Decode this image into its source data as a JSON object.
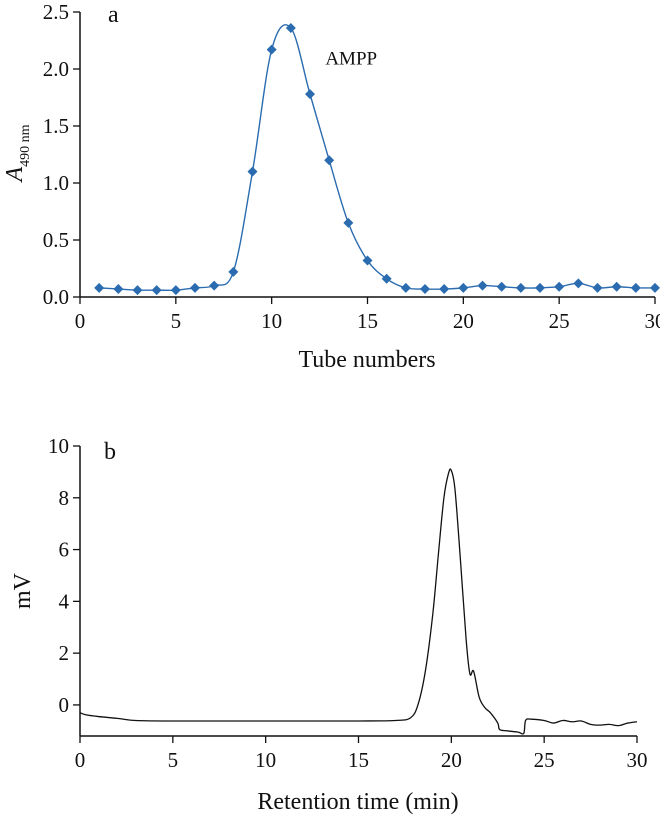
{
  "chart_data": [
    {
      "panel": "a",
      "type": "line",
      "xlabel": "Tube numbers",
      "ylabel_main": "A",
      "ylabel_sub": "490 nm",
      "xlim": [
        0,
        30
      ],
      "ylim": [
        0,
        2.5
      ],
      "xticks": [
        0,
        5,
        10,
        15,
        20,
        25,
        30
      ],
      "yticks": [
        "0.0",
        "0.5",
        "1.0",
        "1.5",
        "2.0",
        "2.5"
      ],
      "marker": "diamond",
      "color": "#2b6cb0",
      "annotations": [
        {
          "text": "AMPP",
          "x": 12.8,
          "y": 2.04
        }
      ],
      "series": [
        {
          "x": [
            1,
            2,
            3,
            4,
            5,
            6,
            7,
            8,
            9,
            10,
            11,
            12,
            13,
            14,
            15,
            16,
            17,
            18,
            19,
            20,
            21,
            22,
            23,
            24,
            25,
            26,
            27,
            28,
            29,
            30
          ],
          "values": [
            0.08,
            0.07,
            0.06,
            0.06,
            0.06,
            0.08,
            0.1,
            0.22,
            1.1,
            2.17,
            2.36,
            1.78,
            1.2,
            0.65,
            0.32,
            0.16,
            0.08,
            0.07,
            0.07,
            0.08,
            0.1,
            0.09,
            0.08,
            0.08,
            0.09,
            0.12,
            0.08,
            0.09,
            0.08,
            0.08
          ]
        }
      ]
    },
    {
      "panel": "b",
      "type": "line",
      "xlabel": "Retention time (min)",
      "ylabel": "mV",
      "xlim": [
        0,
        30
      ],
      "ylim": [
        -1.2,
        10
      ],
      "xticks": [
        0,
        5,
        10,
        15,
        20,
        25,
        30
      ],
      "yticks": [
        0,
        2,
        4,
        6,
        8,
        10
      ],
      "color": "#111111",
      "series": [
        {
          "x": [
            0,
            0.3,
            1,
            2,
            3,
            5,
            10,
            15,
            17,
            17.8,
            18.2,
            18.6,
            19,
            19.3,
            19.6,
            19.85,
            20,
            20.2,
            20.5,
            20.8,
            21.0,
            21.2,
            21.5,
            21.8,
            22.1,
            22.5,
            22.6,
            23,
            23.6,
            23.9,
            24,
            24.3,
            25,
            25.5,
            26,
            26.5,
            27,
            27.5,
            28,
            28.5,
            29,
            29.5,
            30
          ],
          "values": [
            -0.3,
            -0.38,
            -0.45,
            -0.52,
            -0.6,
            -0.62,
            -0.62,
            -0.62,
            -0.6,
            -0.5,
            0.0,
            1.3,
            3.5,
            5.8,
            8.0,
            8.95,
            9.05,
            8.3,
            5.5,
            2.5,
            1.2,
            1.3,
            0.3,
            -0.1,
            -0.3,
            -0.7,
            -0.95,
            -1.0,
            -1.05,
            -1.1,
            -0.6,
            -0.55,
            -0.6,
            -0.7,
            -0.6,
            -0.65,
            -0.62,
            -0.75,
            -0.78,
            -0.75,
            -0.8,
            -0.7,
            -0.65
          ]
        }
      ]
    }
  ]
}
